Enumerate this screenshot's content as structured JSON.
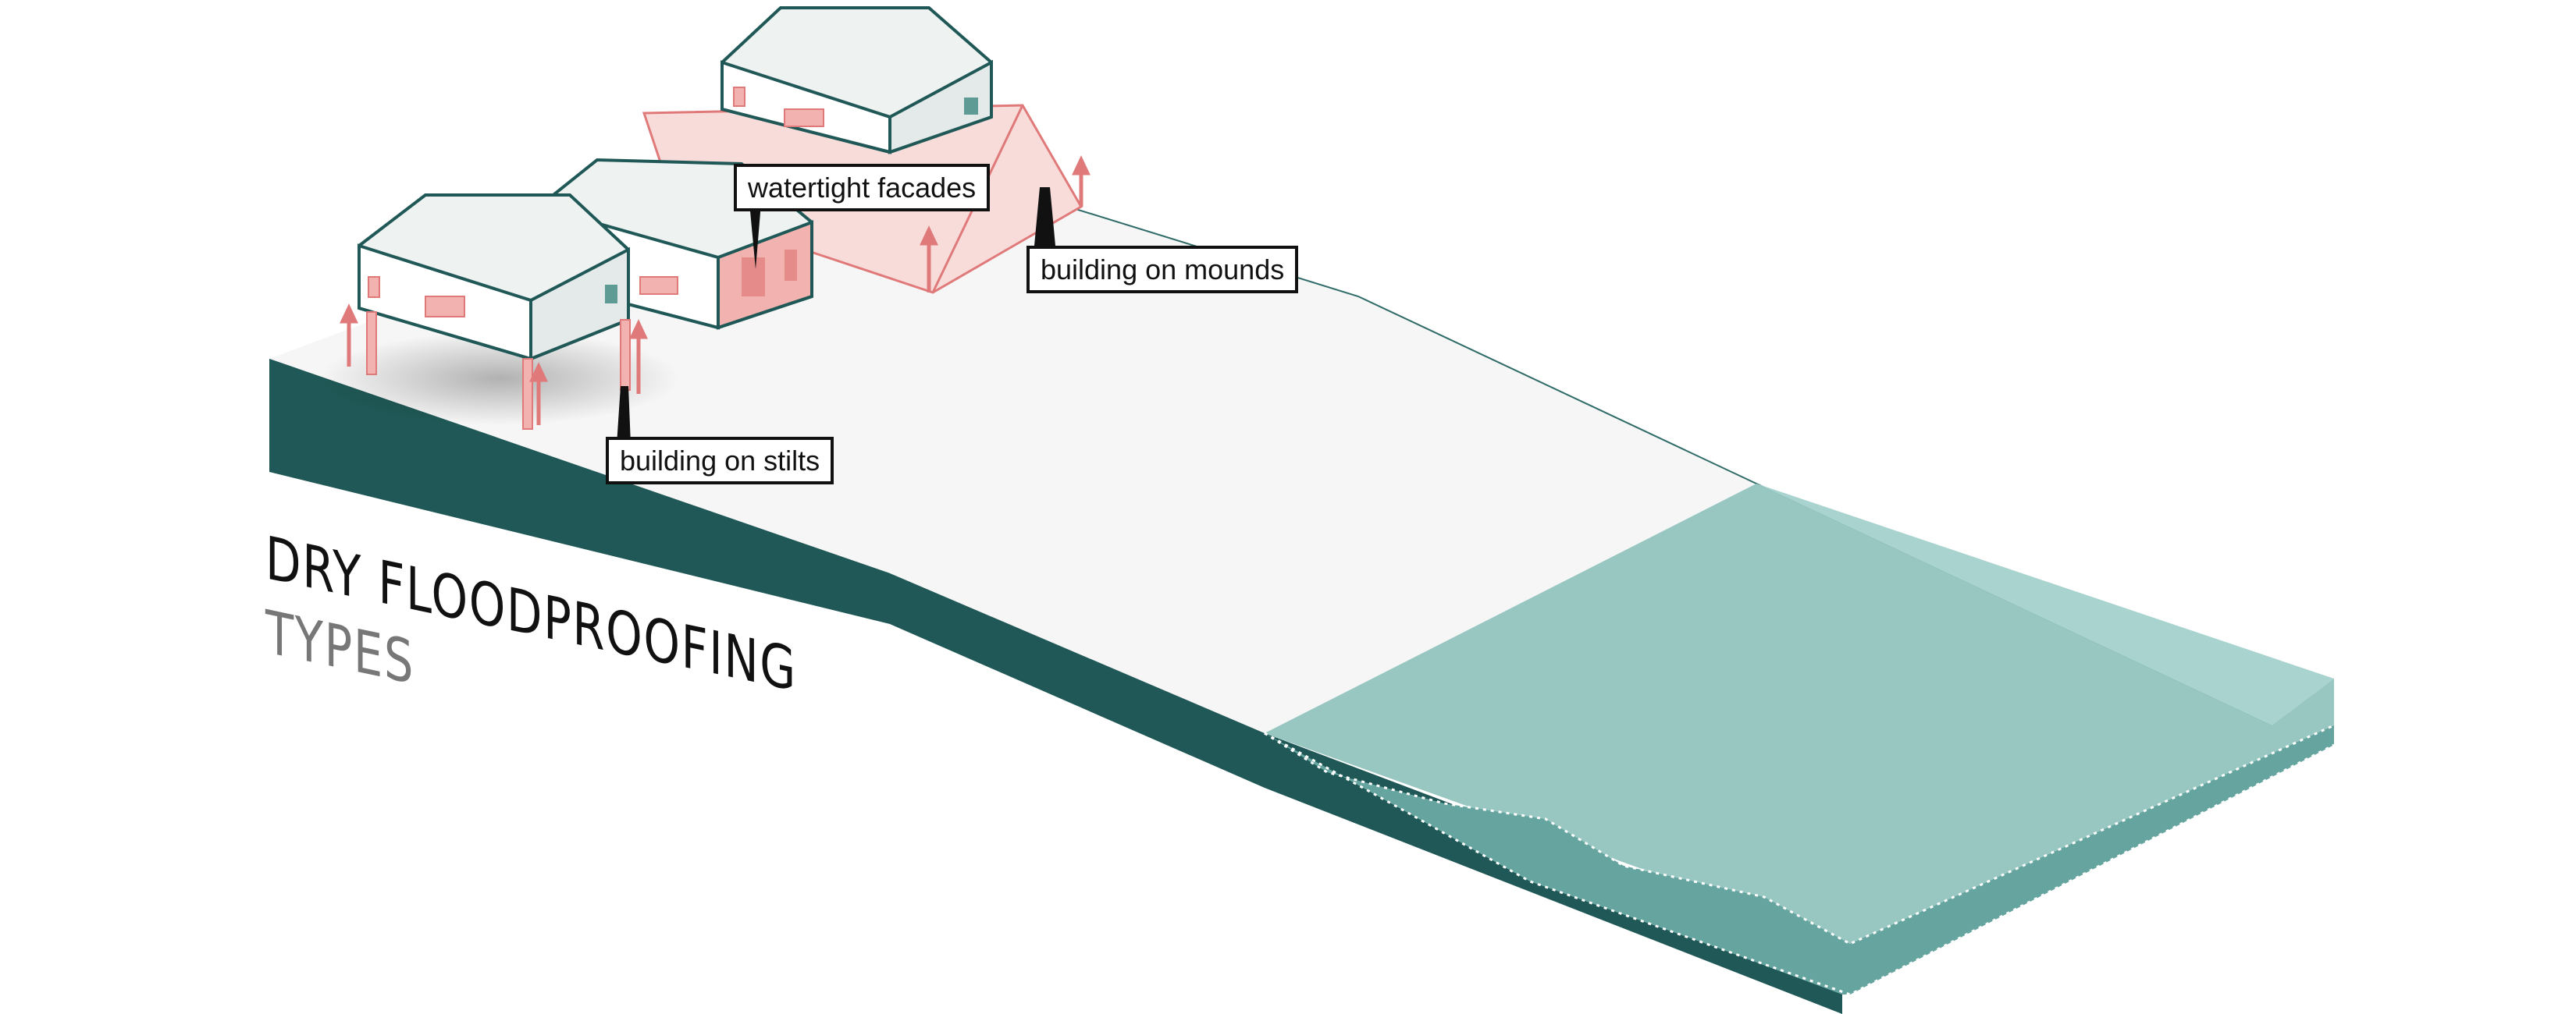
{
  "diagram": {
    "title": "DRY FLOODPROOFING",
    "subtitle": "TYPES",
    "labels": {
      "stilts": "building on stilts",
      "facades": "watertight facades",
      "mounds": "building on mounds"
    },
    "colors": {
      "ground_front": "#1f5856",
      "ground_top": "#f7f7f7",
      "water_top": "#98c7c2",
      "water_side": "#66a59f",
      "water_far": "#a8d3ce",
      "accent": "#e07a7a",
      "accent_fill": "#f2b3b0",
      "house_outline": "#1f5856",
      "house_wall": "#eef2f1"
    }
  }
}
